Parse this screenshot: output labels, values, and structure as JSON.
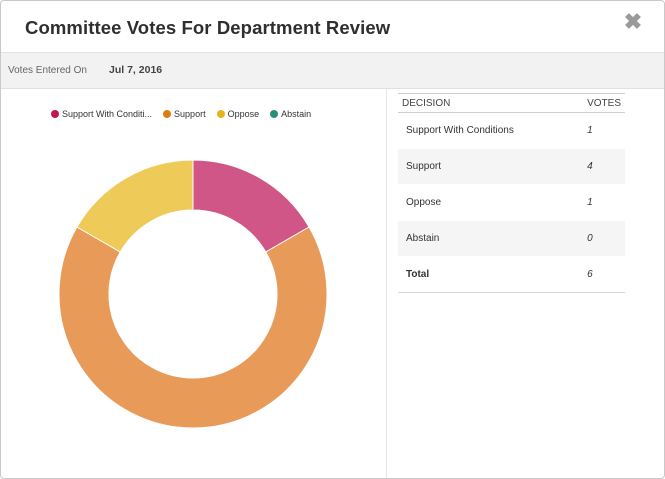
{
  "modal": {
    "title": "Committee Votes For Department Review",
    "close_label": "✖"
  },
  "meta": {
    "label": "Votes Entered On",
    "value": "Jul 7, 2016"
  },
  "table": {
    "headers": {
      "decision": "DECISION",
      "votes": "VOTES"
    },
    "rows": [
      {
        "decision": "Support With Conditions",
        "votes": "1"
      },
      {
        "decision": "Support",
        "votes": "4"
      },
      {
        "decision": "Oppose",
        "votes": "1"
      },
      {
        "decision": "Abstain",
        "votes": "0"
      }
    ],
    "total": {
      "label": "Total",
      "votes": "6"
    }
  },
  "chart_data": {
    "type": "pie",
    "variant": "donut",
    "title": "",
    "legend_position": "top",
    "categories": [
      "Support With Conditi...",
      "Support",
      "Oppose",
      "Abstain"
    ],
    "values": [
      1,
      4,
      1,
      0
    ],
    "colors": [
      "#cf5686",
      "#e89b58",
      "#eecb58",
      "#2f9e7e"
    ],
    "legend_colors": [
      "#c0174f",
      "#de7a14",
      "#e4b419",
      "#2a8f76"
    ]
  }
}
